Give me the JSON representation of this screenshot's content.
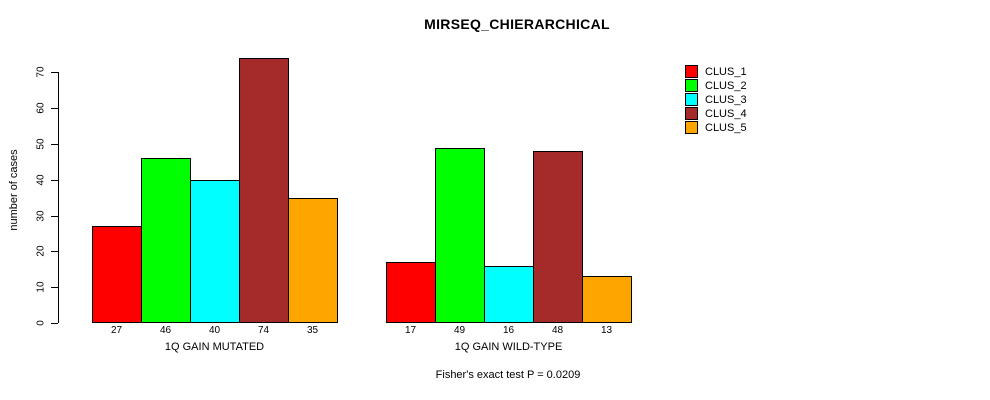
{
  "chart_data": {
    "type": "bar",
    "title": "MIRSEQ_CHIERARCHICAL",
    "ylabel": "number of cases",
    "xlabel": "",
    "ylim": [
      0,
      74
    ],
    "yticks": [
      0,
      10,
      20,
      30,
      40,
      50,
      60,
      70
    ],
    "grid": false,
    "legend_position": "right",
    "categories": [
      "1Q GAIN MUTATED",
      "1Q GAIN WILD-TYPE"
    ],
    "series": [
      {
        "name": "CLUS_1",
        "color": "#FF0000",
        "values": [
          27,
          17
        ]
      },
      {
        "name": "CLUS_2",
        "color": "#00FF00",
        "values": [
          46,
          49
        ]
      },
      {
        "name": "CLUS_3",
        "color": "#00FFFF",
        "values": [
          40,
          16
        ]
      },
      {
        "name": "CLUS_4",
        "color": "#A52A2A",
        "values": [
          74,
          48
        ]
      },
      {
        "name": "CLUS_5",
        "color": "#FFA500",
        "values": [
          35,
          13
        ]
      }
    ],
    "bar_value_labels_shown": true,
    "annotation": "Fisher's exact test P = 0.0209"
  },
  "legend": {
    "items": [
      {
        "label": "CLUS_1",
        "color": "#FF0000"
      },
      {
        "label": "CLUS_2",
        "color": "#00FF00"
      },
      {
        "label": "CLUS_3",
        "color": "#00FFFF"
      },
      {
        "label": "CLUS_4",
        "color": "#A52A2A"
      },
      {
        "label": "CLUS_5",
        "color": "#FFA500"
      }
    ]
  },
  "colors": {
    "background": "#FFFFFF",
    "axis": "#000000",
    "text": "#000000"
  }
}
